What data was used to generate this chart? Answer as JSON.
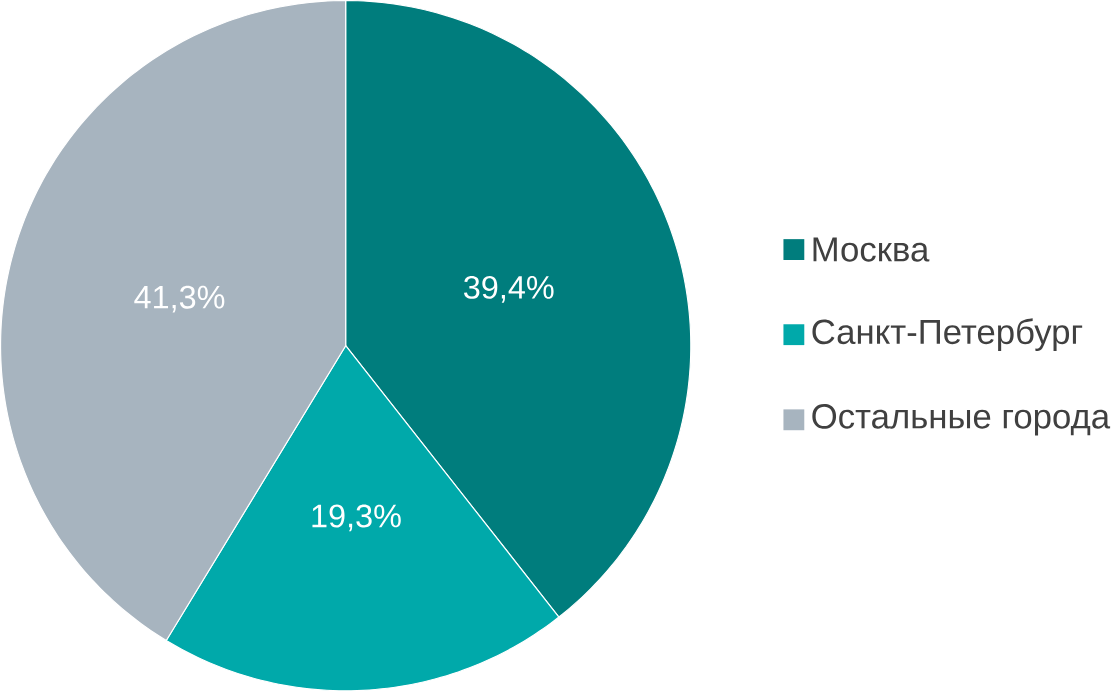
{
  "chart_data": {
    "type": "pie",
    "categories": [
      "Москва",
      "Санкт-Петербург",
      "Остальные города"
    ],
    "values": [
      39.4,
      19.3,
      41.3
    ],
    "colors": [
      "#007d7d",
      "#00a9aa",
      "#a7b4bf"
    ],
    "value_labels": [
      "39,4%",
      "19,3%",
      "41,3%"
    ],
    "legend": "right"
  }
}
